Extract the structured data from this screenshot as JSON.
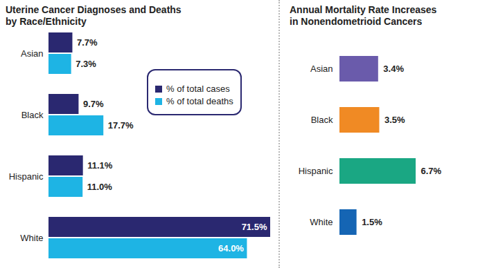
{
  "chart_data": [
    {
      "type": "bar",
      "title": "Uterine Cancer Diagnoses and Deaths\nby Race/Ethnicity",
      "orientation": "horizontal",
      "categories": [
        "Asian",
        "Black",
        "Hispanic",
        "White"
      ],
      "series": [
        {
          "name": "% of total cases",
          "color": "#2a2870",
          "values": [
            7.7,
            9.7,
            11.1,
            71.5
          ],
          "value_labels": [
            "7.7%",
            "9.7%",
            "11.1%",
            "71.5%"
          ]
        },
        {
          "name": "% of total deaths",
          "color": "#1eb4e4",
          "values": [
            7.3,
            17.7,
            11.0,
            64.0
          ],
          "value_labels": [
            "7.3%",
            "17.7%",
            "11.0%",
            "64.0%"
          ]
        }
      ],
      "data_labels": true,
      "legend": "center",
      "tick_labels": "y"
    },
    {
      "type": "bar",
      "title": "Annual Mortality Rate Increases\nin Nonendometrioid Cancers",
      "orientation": "horizontal",
      "categories": [
        "Asian",
        "Black",
        "Hispanic",
        "White"
      ],
      "values": [
        3.4,
        3.5,
        6.7,
        1.5
      ],
      "value_labels": [
        "3.4%",
        "3.5%",
        "6.7%",
        "1.5%"
      ],
      "colors": [
        "#6a5bab",
        "#f08a24",
        "#1aa783",
        "#1565b4"
      ],
      "data_labels": true,
      "tick_labels": "y"
    }
  ]
}
